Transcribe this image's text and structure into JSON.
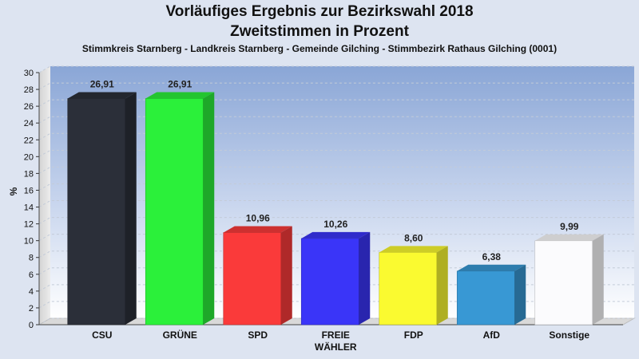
{
  "chart_data": {
    "type": "bar",
    "title": "Vorläufiges Ergebnis zur Bezirkswahl 2018",
    "subtitle_line": "Zweitstimmen in Prozent",
    "subtitle": "Stimmkreis Starnberg - Landkreis Starnberg - Gemeinde Gilching - Stimmbezirk Rathaus Gilching (0001)",
    "ylabel": "%",
    "xlabel": "",
    "ylim": [
      0,
      30
    ],
    "yticks": [
      "0",
      "2",
      "4",
      "6",
      "8",
      "10",
      "12",
      "14",
      "16",
      "18",
      "20",
      "22",
      "24",
      "26",
      "28",
      "30"
    ],
    "categories": [
      "CSU",
      "GRÜNE",
      "SPD",
      "FREIE WÄHLER",
      "FDP",
      "AfD",
      "Sonstige"
    ],
    "category_lines": [
      [
        "CSU"
      ],
      [
        "GRÜNE"
      ],
      [
        "SPD"
      ],
      [
        "FREIE",
        "WÄHLER"
      ],
      [
        "FDP"
      ],
      [
        "AfD"
      ],
      [
        "Sonstige"
      ]
    ],
    "values": [
      26.91,
      26.91,
      10.96,
      10.26,
      8.6,
      6.38,
      9.99
    ],
    "value_labels": [
      "26,91",
      "26,91",
      "10,96",
      "10,26",
      "8,60",
      "6,38",
      "9,99"
    ],
    "colors": [
      "#2b2f39",
      "#2bf03a",
      "#fa3a3a",
      "#3a35f8",
      "#fafa30",
      "#3898d4",
      "#fbfbfd"
    ],
    "grid": true,
    "legend": "none"
  }
}
